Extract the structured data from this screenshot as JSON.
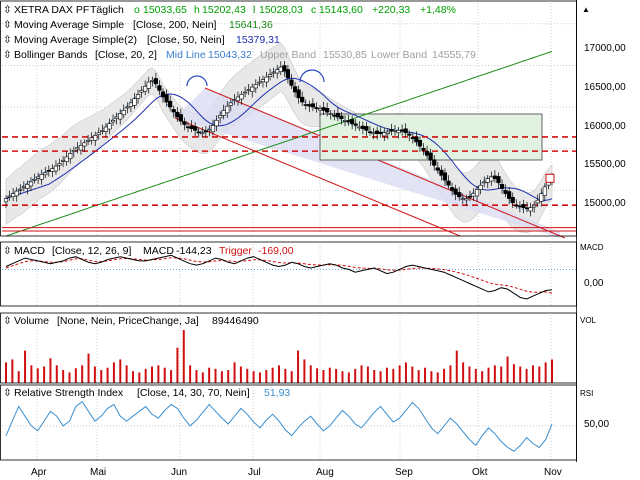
{
  "colors": {
    "up_candle": "#00a000",
    "down_candle": "#d00000",
    "sma200": "#1a8c1a",
    "sma50": "#1e2fb0",
    "bollinger_band": "#e8e8e8",
    "bollinger_mid": "#3a7fd0",
    "channel": "#d01818",
    "channel_fill": "#dcdcf4",
    "box_fill": "#e2f2e2",
    "support_line": "#d01010",
    "macd_line": "#000000",
    "trigger_line": "#d01010",
    "volume_bar": "#d01010",
    "rsi_line": "#3a8fd0",
    "grid": "#b0b0b0"
  },
  "chart_data": [
    {
      "type": "candlestick",
      "title": "XETRA DAX PF",
      "period": "Täglich",
      "ohlc": {
        "open_label": "o",
        "open": "15033,65",
        "high_label": "h",
        "high": "15202,43",
        "low_label": "l",
        "low": "15028,03",
        "close_label": "c",
        "close": "15143,60",
        "change": "+220,33",
        "change_pct": "+1,48%"
      },
      "indicators": [
        {
          "name": "Moving Average Simple",
          "params": "[Close, 200, Nein]",
          "value": "15641,36",
          "icon": "up-down-arrow-icon"
        },
        {
          "name": "Moving Average Simple(2)",
          "params": "[Close, 50, Nein]",
          "value": "15379,31",
          "icon": "up-down-arrow-icon"
        },
        {
          "name": "Bollinger Bands",
          "params": "[Close, 20, 2]",
          "mid_label": "Mid Line",
          "mid": "15043,32",
          "upper_label": "Upper Band",
          "upper": "15530,85",
          "lower_label": "Lower Band",
          "lower": "14555,79",
          "icon": "up-down-arrow-icon"
        }
      ],
      "x_tick_labels": [
        "Apr",
        "Mai",
        "Jun",
        "Jul",
        "Aug",
        "Sep",
        "Okt",
        "Nov"
      ],
      "y_tick_labels": [
        "17000,00",
        "16500,00",
        "16000,00",
        "15500,00",
        "15000,00"
      ],
      "ylim": [
        14450,
        17250
      ],
      "close_series": [
        14900,
        14930,
        14960,
        14990,
        15010,
        15040,
        15070,
        15100,
        15130,
        15160,
        15190,
        15210,
        15230,
        15260,
        15290,
        15320,
        15360,
        15400,
        15440,
        15480,
        15510,
        15540,
        15570,
        15600,
        15630,
        15660,
        15690,
        15720,
        15760,
        15800,
        15840,
        15880,
        15920,
        15960,
        16000,
        16050,
        16100,
        16150,
        16200,
        16250,
        16300,
        16320,
        16280,
        16200,
        16120,
        16060,
        16000,
        15940,
        15880,
        15830,
        15790,
        15760,
        15740,
        15720,
        15700,
        15690,
        15700,
        15730,
        15780,
        15840,
        15900,
        15960,
        16010,
        16050,
        16090,
        16120,
        16150,
        16180,
        16210,
        16240,
        16270,
        16300,
        16330,
        16360,
        16390,
        16420,
        16450,
        16480,
        16430,
        16350,
        16260,
        16180,
        16110,
        16060,
        16030,
        16010,
        16000,
        15990,
        15980,
        15960,
        15940,
        15920,
        15900,
        15880,
        15860,
        15840,
        15820,
        15800,
        15780,
        15760,
        15740,
        15720,
        15700,
        15690,
        15680,
        15680,
        15690,
        15700,
        15710,
        15720,
        15720,
        15710,
        15690,
        15660,
        15620,
        15580,
        15530,
        15480,
        15420,
        15360,
        15300,
        15240,
        15180,
        15120,
        15060,
        15000,
        14950,
        14920,
        14900,
        14900,
        14920,
        14960,
        15010,
        15060,
        15100,
        15140,
        15160,
        15140,
        15090,
        15020,
        14960,
        14900,
        14850,
        14820,
        14800,
        14790,
        14780,
        14790,
        14820,
        14880,
        14960,
        15040,
        15100,
        15143.6
      ]
    },
    {
      "type": "line",
      "title": "MACD",
      "params": "[Close, 12, 26, 9]",
      "name": "MACD",
      "value": "-144,23",
      "trigger_label": "Trigger",
      "trigger": "-169,00",
      "icon": "up-down-arrow-icon",
      "y_tick_label": "0,00",
      "y_axis_label": "MACD",
      "ylim": [
        -260,
        180
      ],
      "macd_series": [
        20,
        40,
        60,
        80,
        70,
        60,
        50,
        40,
        50,
        60,
        80,
        90,
        70,
        50,
        40,
        50,
        70,
        80,
        90,
        80,
        70,
        60,
        60,
        70,
        80,
        90,
        100,
        80,
        60,
        40,
        30,
        40,
        60,
        80,
        70,
        50,
        40,
        60,
        80,
        90,
        70,
        50,
        30,
        20,
        30,
        50,
        40,
        20,
        10,
        20,
        30,
        40,
        30,
        10,
        0,
        -20,
        -10,
        0,
        10,
        -10,
        -30,
        -20,
        0,
        20,
        30,
        20,
        10,
        0,
        -10,
        -20,
        -40,
        -60,
        -80,
        -100,
        -120,
        -140,
        -160,
        -150,
        -130,
        -140,
        -170,
        -200,
        -210,
        -190,
        -170,
        -150,
        -144.23
      ],
      "trigger_series": [
        10,
        25,
        40,
        55,
        60,
        60,
        55,
        50,
        50,
        55,
        65,
        75,
        75,
        65,
        55,
        55,
        60,
        68,
        76,
        78,
        75,
        70,
        66,
        67,
        70,
        76,
        82,
        81,
        75,
        66,
        56,
        52,
        54,
        60,
        63,
        60,
        56,
        57,
        62,
        68,
        68,
        63,
        56,
        49,
        45,
        46,
        45,
        40,
        34,
        31,
        31,
        33,
        32,
        28,
        22,
        14,
        9,
        7,
        8,
        4,
        -3,
        -6,
        -5,
        0,
        6,
        9,
        9,
        7,
        3,
        -2,
        -10,
        -20,
        -32,
        -46,
        -61,
        -77,
        -94,
        -105,
        -110,
        -116,
        -127,
        -141,
        -155,
        -162,
        -163,
        -160,
        -169
      ]
    },
    {
      "type": "bar",
      "title": "Volume",
      "params": "[None, Nein, PriceChange, Ja]",
      "value": "89446490",
      "icon": "up-down-arrow-icon",
      "y_axis_label": "VOL",
      "values": [
        35,
        40,
        20,
        55,
        30,
        25,
        28,
        42,
        30,
        22,
        18,
        25,
        30,
        50,
        28,
        22,
        26,
        35,
        40,
        30,
        20,
        18,
        24,
        28,
        30,
        26,
        22,
        60,
        90,
        30,
        22,
        18,
        26,
        24,
        20,
        22,
        35,
        28,
        24,
        20,
        18,
        22,
        26,
        30,
        24,
        20,
        55,
        40,
        30,
        25,
        22,
        26,
        24,
        20,
        18,
        24,
        30,
        28,
        22,
        20,
        26,
        24,
        30,
        35,
        28,
        22,
        26,
        20,
        18,
        24,
        30,
        55,
        35,
        28,
        24,
        20,
        26,
        30,
        28,
        45,
        32,
        28,
        24,
        30,
        28,
        35,
        40
      ]
    },
    {
      "type": "line",
      "title": "Relative Strength Index",
      "params": "[Close, 14, 30, 70, Nein]",
      "value": "51,93",
      "icon": "up-down-arrow-icon",
      "y_tick_label": "50,00",
      "y_axis_label": "RSI",
      "ylim": [
        15,
        90
      ],
      "series": [
        40,
        55,
        70,
        60,
        50,
        45,
        55,
        65,
        60,
        50,
        55,
        70,
        75,
        65,
        55,
        60,
        68,
        72,
        60,
        55,
        60,
        65,
        70,
        62,
        58,
        66,
        72,
        68,
        58,
        50,
        56,
        64,
        72,
        65,
        58,
        52,
        60,
        68,
        62,
        54,
        48,
        56,
        62,
        55,
        46,
        40,
        48,
        55,
        60,
        52,
        45,
        50,
        58,
        66,
        60,
        52,
        48,
        56,
        64,
        70,
        62,
        54,
        58,
        66,
        74,
        68,
        58,
        48,
        42,
        50,
        58,
        52,
        44,
        36,
        30,
        40,
        48,
        42,
        34,
        28,
        24,
        30,
        38,
        32,
        28,
        36,
        51.93
      ]
    }
  ]
}
